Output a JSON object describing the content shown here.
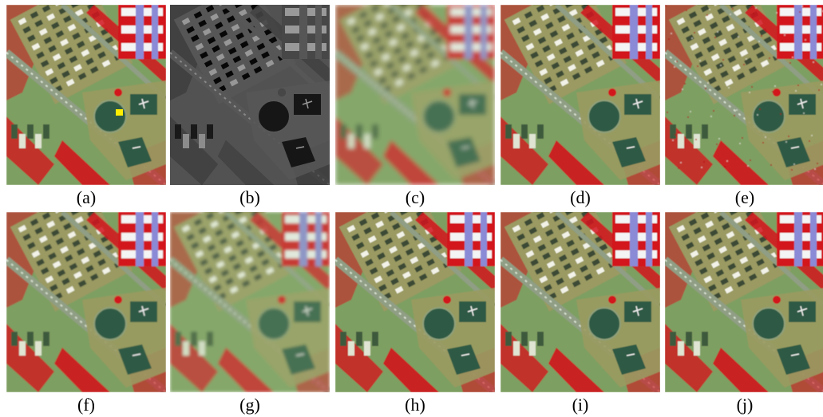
{
  "figure": {
    "panels": [
      {
        "label": "(a)",
        "style": "color",
        "blur": 0.4,
        "marker": true
      },
      {
        "label": "(b)",
        "style": "pan",
        "blur": 0.0,
        "marker": false
      },
      {
        "label": "(c)",
        "style": "soft",
        "blur": 2.8,
        "marker": false
      },
      {
        "label": "(d)",
        "style": "color",
        "blur": 0.5,
        "marker": false
      },
      {
        "label": "(e)",
        "style": "noisy",
        "blur": 0.5,
        "marker": false
      },
      {
        "label": "(f)",
        "style": "color",
        "blur": 0.8,
        "marker": false
      },
      {
        "label": "(g)",
        "style": "soft",
        "blur": 1.8,
        "marker": false
      },
      {
        "label": "(h)",
        "style": "color",
        "blur": 0.4,
        "marker": false
      },
      {
        "label": "(i)",
        "style": "color",
        "blur": 0.5,
        "marker": false
      },
      {
        "label": "(j)",
        "style": "color",
        "blur": 0.5,
        "marker": false
      }
    ],
    "colors": {
      "vegetation_red": "#d2141e",
      "dry_ground": "#9a9a62",
      "grass_green": "#7e9f62",
      "roof_green": "#2f5a44",
      "road": "#8f9e84",
      "marker_yellow": "#ffee00"
    }
  }
}
